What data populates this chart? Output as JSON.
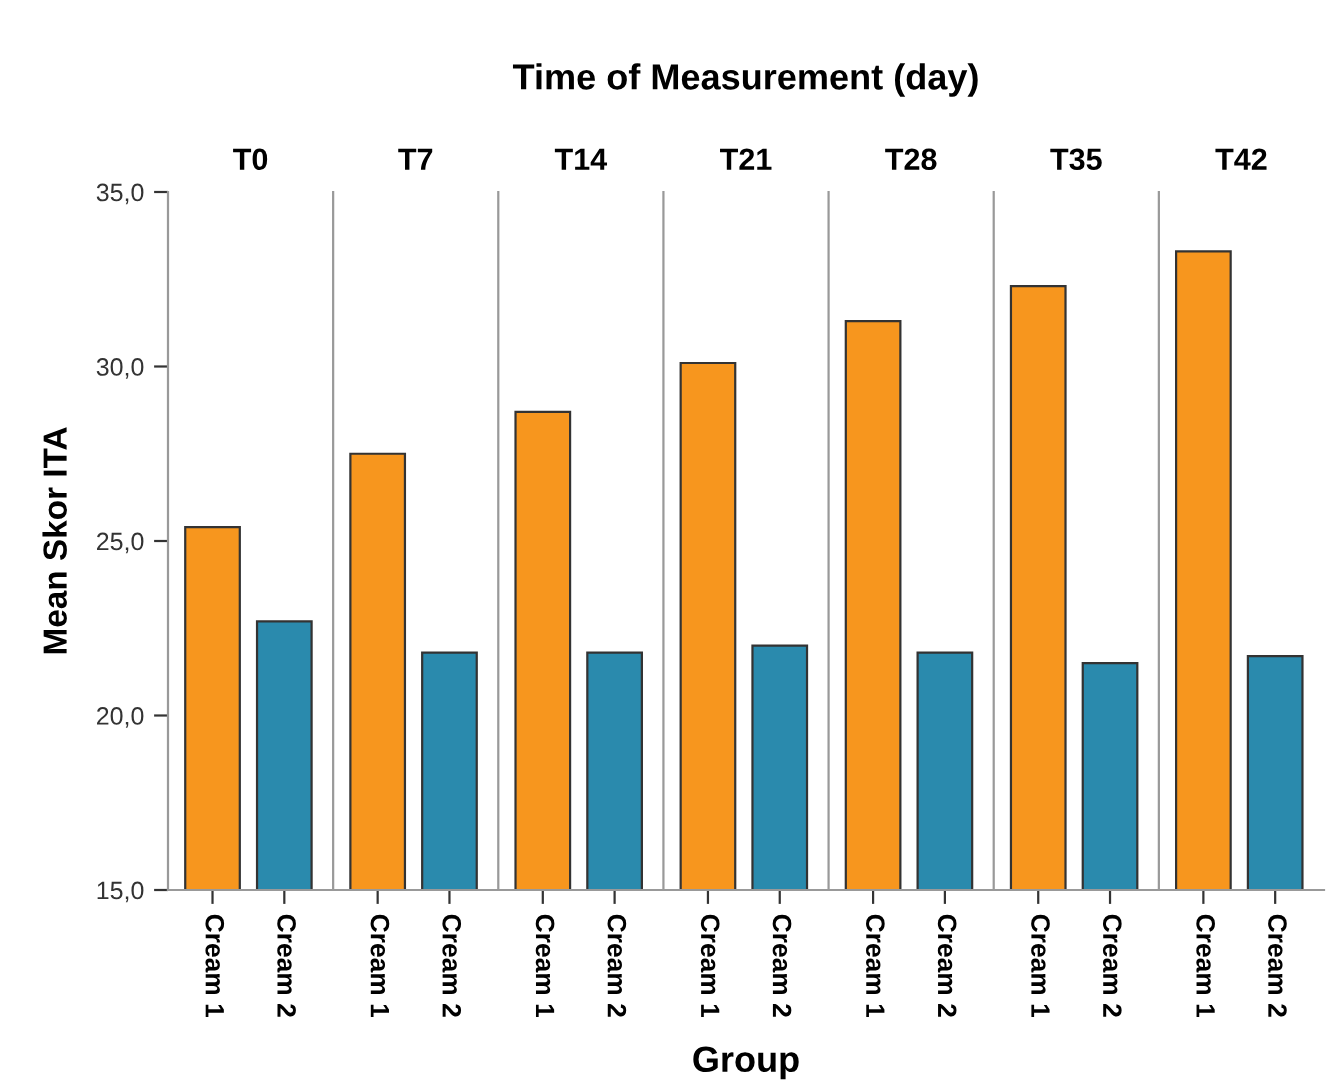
{
  "chart_data": [
    {
      "type": "bar",
      "title": "T0",
      "annotations": [
        "Time of Measurement (day)"
      ],
      "ylabel": "Mean Skor ITA",
      "categories": [
        "Cream 1",
        "Cream 2"
      ],
      "values": [
        25.4,
        22.7
      ],
      "colors": [
        "#f7961e",
        "#2a8aad"
      ],
      "ylim": [
        15,
        35
      ],
      "yticks": [
        {
          "value": 15,
          "label": "15,0"
        },
        {
          "value": 20,
          "label": "20,0"
        },
        {
          "value": 25,
          "label": "25,0"
        },
        {
          "value": 30,
          "label": "30,0"
        },
        {
          "value": 35,
          "label": "35,0"
        }
      ]
    },
    {
      "type": "bar",
      "title": "T7",
      "categories": [
        "Cream 1",
        "Cream 2"
      ],
      "values": [
        27.5,
        21.8
      ],
      "colors": [
        "#f7961e",
        "#2a8aad"
      ],
      "ylim": [
        15,
        35
      ],
      "tick_labels": "x"
    },
    {
      "type": "bar",
      "title": "T14",
      "categories": [
        "Cream 1",
        "Cream 2"
      ],
      "values": [
        28.7,
        21.8
      ],
      "colors": [
        "#f7961e",
        "#2a8aad"
      ],
      "ylim": [
        15,
        35
      ],
      "tick_labels": "x"
    },
    {
      "type": "bar",
      "title": "T21",
      "xlabel": "Group",
      "categories": [
        "Cream 1",
        "Cream 2"
      ],
      "values": [
        30.1,
        22.0
      ],
      "colors": [
        "#f7961e",
        "#2a8aad"
      ],
      "ylim": [
        15,
        35
      ],
      "tick_labels": "x"
    },
    {
      "type": "bar",
      "title": "T28",
      "categories": [
        "Cream 1",
        "Cream 2"
      ],
      "values": [
        31.3,
        21.8
      ],
      "colors": [
        "#f7961e",
        "#2a8aad"
      ],
      "ylim": [
        15,
        35
      ],
      "tick_labels": "x"
    },
    {
      "type": "bar",
      "title": "T35",
      "categories": [
        "Cream 1",
        "Cream 2"
      ],
      "values": [
        32.3,
        21.5
      ],
      "colors": [
        "#f7961e",
        "#2a8aad"
      ],
      "ylim": [
        15,
        35
      ],
      "tick_labels": "x"
    },
    {
      "type": "bar",
      "title": "T42",
      "categories": [
        "Cream 1",
        "Cream 2"
      ],
      "values": [
        33.3,
        21.7
      ],
      "colors": [
        "#f7961e",
        "#2a8aad"
      ],
      "ylim": [
        15,
        35
      ],
      "tick_labels": "x"
    }
  ]
}
